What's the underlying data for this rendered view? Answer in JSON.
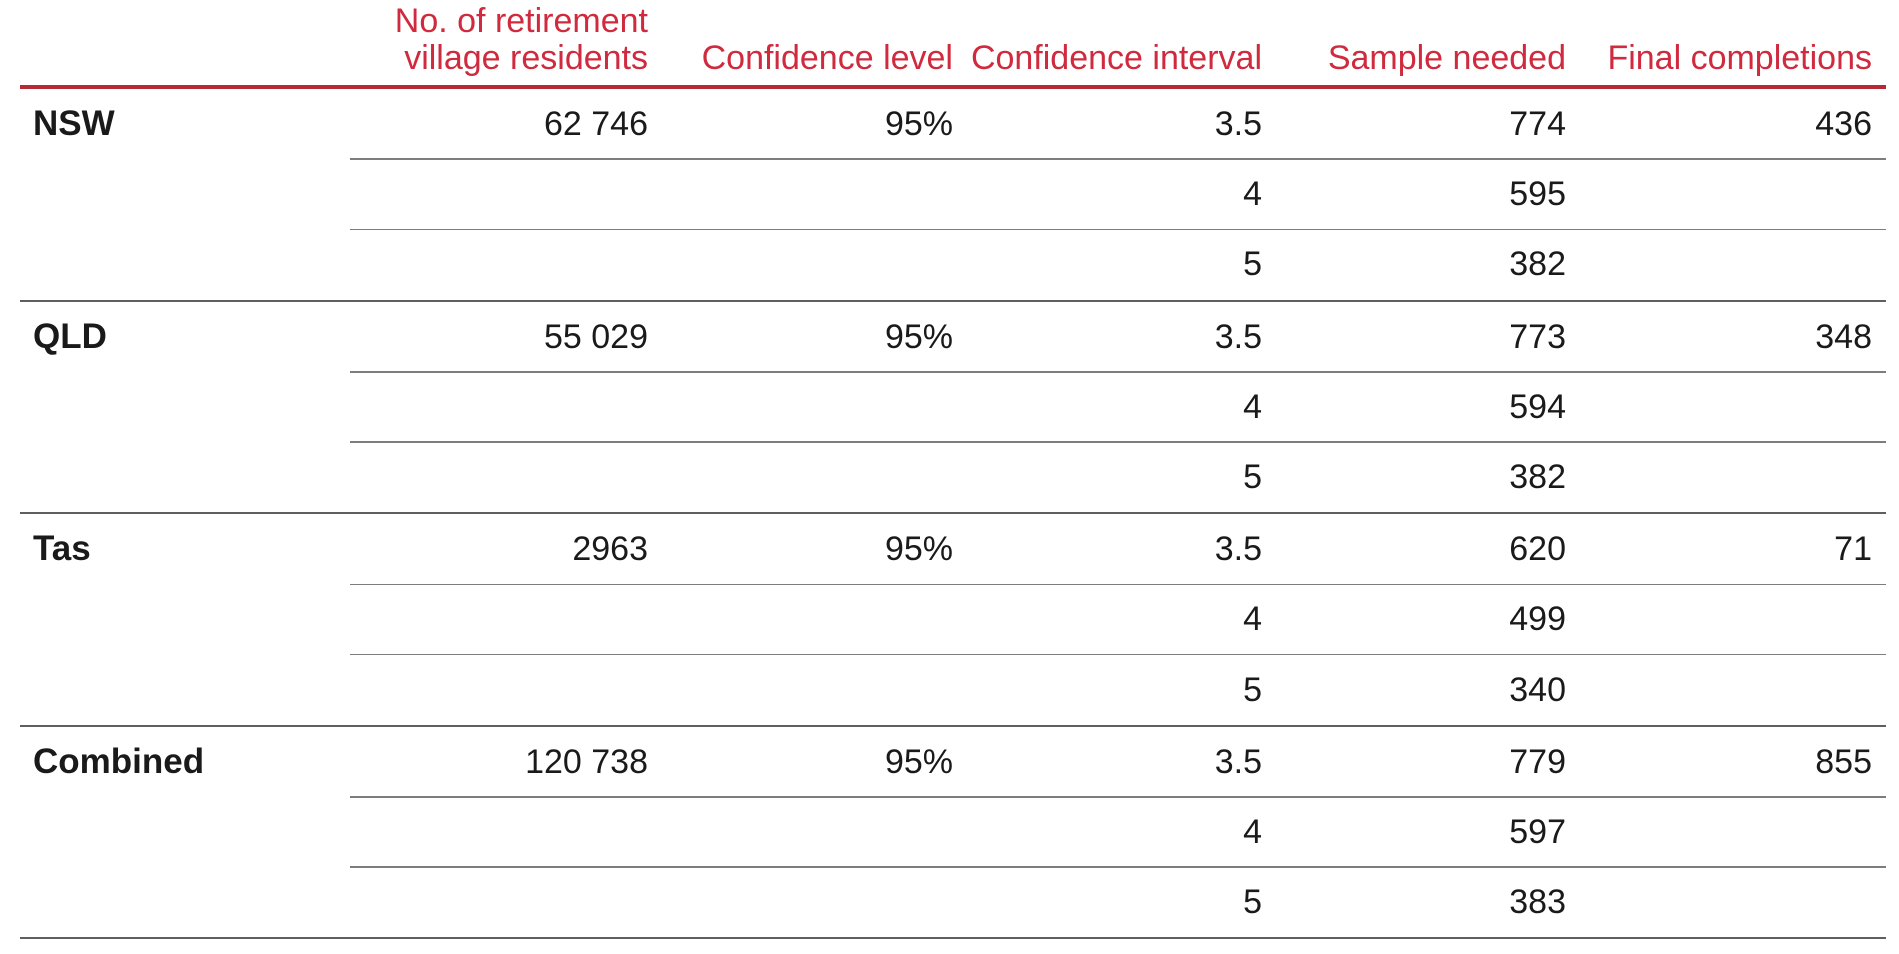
{
  "theme": {
    "accent_text": "#cf2a3e",
    "accent_rule": "#b62a36",
    "text_color": "#1a1a1a",
    "sub_rule": "#7d7d7d",
    "group_rule": "#5f5f5f"
  },
  "table": {
    "columns": [
      {
        "label": ""
      },
      {
        "label": "No. of retirement village residents"
      },
      {
        "label": "Confidence level"
      },
      {
        "label": "Confidence interval"
      },
      {
        "label": "Sample needed"
      },
      {
        "label": "Final completions"
      }
    ],
    "groups": [
      {
        "label": "NSW",
        "residents": "62 746",
        "confidence_level": "95%",
        "rows": [
          {
            "interval": "3.5",
            "sample": "774",
            "final": "436"
          },
          {
            "interval": "4",
            "sample": "595"
          },
          {
            "interval": "5",
            "sample": "382"
          }
        ]
      },
      {
        "label": "QLD",
        "residents": "55 029",
        "confidence_level": "95%",
        "rows": [
          {
            "interval": "3.5",
            "sample": "773",
            "final": "348"
          },
          {
            "interval": "4",
            "sample": "594"
          },
          {
            "interval": "5",
            "sample": "382"
          }
        ]
      },
      {
        "label": "Tas",
        "residents": "2963",
        "confidence_level": "95%",
        "rows": [
          {
            "interval": "3.5",
            "sample": "620",
            "final": "71"
          },
          {
            "interval": "4",
            "sample": "499"
          },
          {
            "interval": "5",
            "sample": "340"
          }
        ]
      },
      {
        "label": "Combined",
        "residents": "120 738",
        "confidence_level": "95%",
        "rows": [
          {
            "interval": "3.5",
            "sample": "779",
            "final": "855"
          },
          {
            "interval": "4",
            "sample": "597"
          },
          {
            "interval": "5",
            "sample": "383"
          }
        ]
      }
    ]
  }
}
